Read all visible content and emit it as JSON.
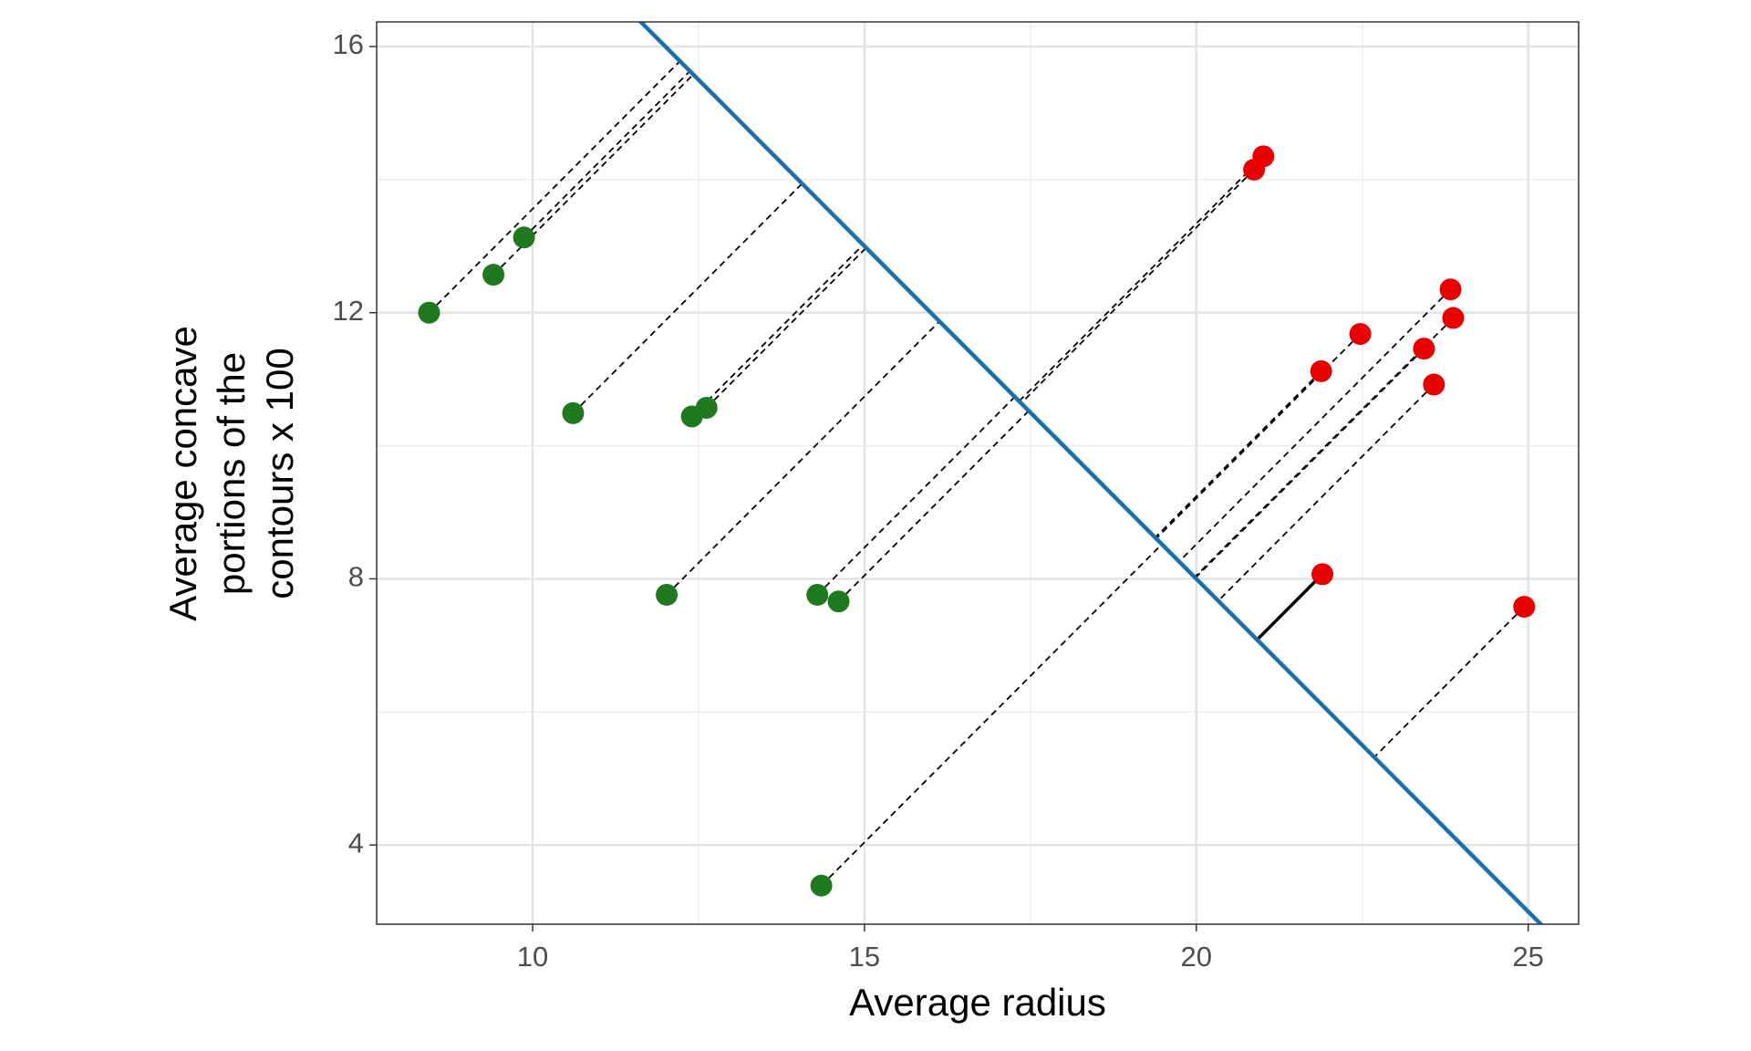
{
  "chart_data": {
    "type": "scatter",
    "x_label": "Average radius",
    "y_label": [
      "Average concave",
      "portions of the",
      "contours x 100"
    ],
    "xlim": [
      7.65,
      25.76
    ],
    "ylim": [
      2.81,
      16.37
    ],
    "xticks": [
      10,
      15,
      20,
      25
    ],
    "yticks": [
      4,
      8,
      12,
      16
    ],
    "minor_xticks": [
      7.5,
      12.5,
      17.5,
      22.5
    ],
    "minor_yticks": [
      6,
      10,
      14
    ],
    "grid": true,
    "series": [
      {
        "color": "#1f7a1f",
        "x": [
          8.44,
          9.41,
          9.87,
          10.61,
          12.4,
          12.62,
          12.02,
          14.29,
          14.61,
          14.35
        ],
        "values": [
          12.0,
          12.57,
          13.13,
          10.49,
          10.44,
          10.57,
          7.76,
          7.76,
          7.66,
          3.39
        ]
      },
      {
        "color": "#e60000",
        "x": [
          20.87,
          21.01,
          21.88,
          22.47,
          23.83,
          23.87,
          23.43,
          23.58,
          21.9,
          24.94
        ],
        "values": [
          14.15,
          14.35,
          11.12,
          11.68,
          12.35,
          11.92,
          11.46,
          10.92,
          8.07,
          7.58
        ]
      }
    ],
    "boundary": {
      "intercept": 28,
      "slope": -1,
      "color": "#1a6faf"
    },
    "solid_projection": {
      "series": 1,
      "index": 8
    }
  }
}
